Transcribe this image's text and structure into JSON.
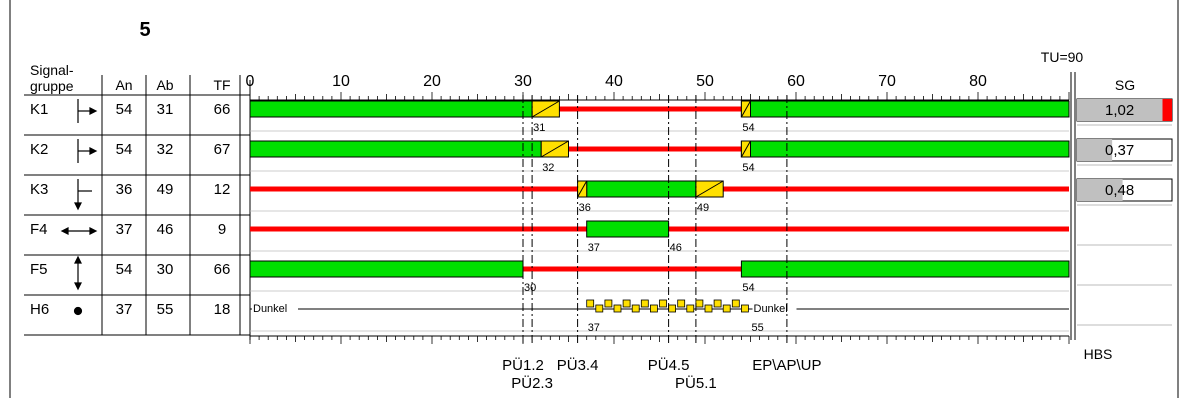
{
  "plan_number": "5",
  "cycle_label": "TU=90",
  "header": {
    "signal_group_line1": "Signal-",
    "signal_group_line2": "gruppe",
    "an": "An",
    "ab": "Ab",
    "tf": "TF",
    "sg": "SG",
    "hbs": "HBS"
  },
  "axis": {
    "min": 0,
    "max": 90,
    "major_ticks": [
      0,
      10,
      20,
      30,
      40,
      50,
      60,
      70,
      80
    ]
  },
  "colors": {
    "green": "#00e000",
    "red": "#ff0000",
    "yellow": "#ffe000",
    "gray": "#c0c0c0"
  },
  "rows": [
    {
      "id": "K1",
      "icon": "arrow-straight-right-icon",
      "an": "54",
      "ab": "31",
      "tf": "66",
      "green": [
        [
          0,
          31
        ],
        [
          54,
          90
        ]
      ],
      "red_line": [
        34,
        54
      ],
      "yellow": [
        [
          31,
          34
        ],
        [
          54,
          55
        ]
      ],
      "marks": [
        {
          "t": 31,
          "label": "31"
        },
        {
          "t": 54,
          "label": "54"
        }
      ],
      "sg": {
        "value": "1,02",
        "fill": 1.02
      }
    },
    {
      "id": "K2",
      "icon": "arrow-straight-right-icon",
      "an": "54",
      "ab": "32",
      "tf": "67",
      "green": [
        [
          0,
          32
        ],
        [
          54,
          90
        ]
      ],
      "red_line": [
        35,
        54
      ],
      "yellow": [
        [
          32,
          35
        ],
        [
          54,
          55
        ]
      ],
      "marks": [
        {
          "t": 32,
          "label": "32"
        },
        {
          "t": 54,
          "label": "54"
        }
      ],
      "sg": {
        "value": "0,37",
        "fill": 0.37
      }
    },
    {
      "id": "K3",
      "icon": "arrow-left-down-icon",
      "an": "36",
      "ab": "49",
      "tf": "12",
      "green": [
        [
          37,
          49
        ]
      ],
      "red_line": [
        0,
        36,
        52,
        90
      ],
      "yellow": [
        [
          36,
          37
        ],
        [
          49,
          52
        ]
      ],
      "marks": [
        {
          "t": 36,
          "label": "36"
        },
        {
          "t": 49,
          "label": "49"
        }
      ],
      "sg": {
        "value": "0,48",
        "fill": 0.48
      }
    },
    {
      "id": "F4",
      "icon": "arrow-left-right-icon",
      "an": "37",
      "ab": "46",
      "tf": "9",
      "green": [
        [
          37,
          46
        ]
      ],
      "red_line": [
        0,
        37,
        46,
        90
      ],
      "yellow": [],
      "marks": [
        {
          "t": 37,
          "label": "37"
        },
        {
          "t": 46,
          "label": "46"
        }
      ],
      "sg": null
    },
    {
      "id": "F5",
      "icon": "arrow-up-down-icon",
      "an": "54",
      "ab": "30",
      "tf": "66",
      "green": [
        [
          0,
          30
        ],
        [
          54,
          90
        ]
      ],
      "red_line": [
        30,
        54
      ],
      "yellow": [],
      "marks": [
        {
          "t": 30,
          "label": "30"
        },
        {
          "t": 54,
          "label": "54"
        }
      ],
      "sg": null
    },
    {
      "id": "H6",
      "icon": "dot-icon",
      "an": "37",
      "ab": "55",
      "tf": "18",
      "dark_label_left": "Dunkel",
      "dark_label_right": "Dunkel",
      "blink": [
        37,
        55
      ],
      "marks": [
        {
          "t": 37,
          "label": "37"
        },
        {
          "t": 55,
          "label": "55"
        }
      ],
      "sg": null
    }
  ],
  "transitions": [
    {
      "t": 30,
      "label": "PÜ1.2",
      "line": 1
    },
    {
      "t": 31,
      "label": "PÜ2.3",
      "line": 2
    },
    {
      "t": 36,
      "label": "PÜ3.4",
      "line": 1
    },
    {
      "t": 46,
      "label": "PÜ4.5",
      "line": 1
    },
    {
      "t": 49,
      "label": "PÜ5.1",
      "line": 2
    },
    {
      "t": 59,
      "label": "EP\\AP\\UP",
      "line": 1
    }
  ]
}
